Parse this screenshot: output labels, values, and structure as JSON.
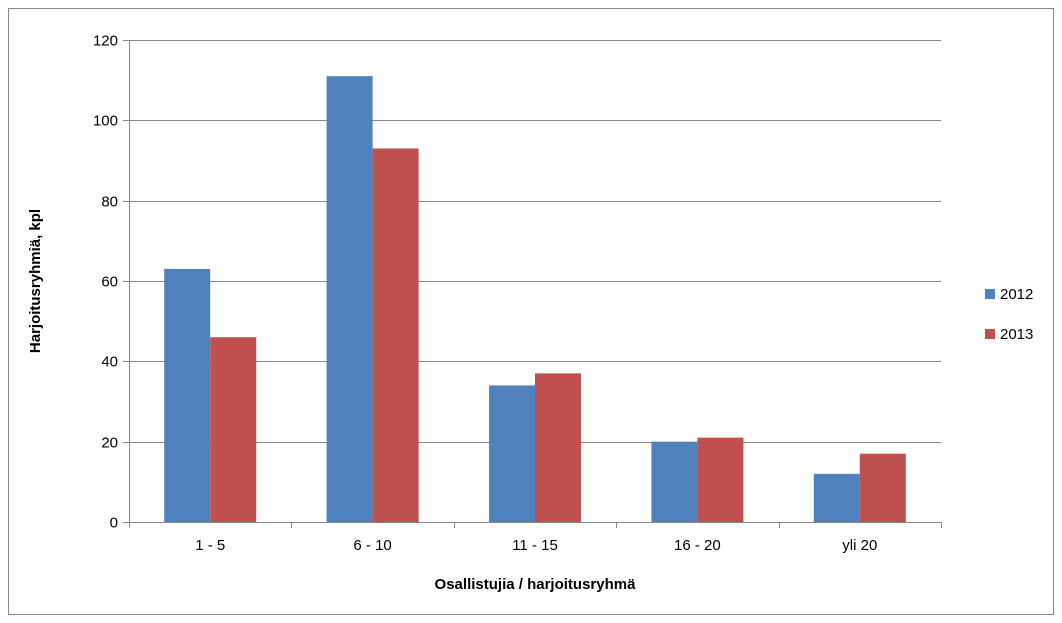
{
  "chart_data": {
    "type": "bar",
    "categories": [
      "1 - 5",
      "6 - 10",
      "11 - 15",
      "16 - 20",
      "yli 20"
    ],
    "series": [
      {
        "name": "2012",
        "color": "#4F81BD",
        "values": [
          63,
          111,
          34,
          20,
          12
        ]
      },
      {
        "name": "2013",
        "color": "#C0504D",
        "values": [
          46,
          93,
          37,
          21,
          17
        ]
      }
    ],
    "title": "",
    "xlabel": "Osallistujia / harjoitusryhmä",
    "ylabel": "Harjoitusryhmiä, kpl",
    "ylim": [
      0,
      120
    ],
    "yticks": [
      "0",
      "20",
      "40",
      "60",
      "80",
      "100",
      "120"
    ],
    "grid": true,
    "legend_position": "right"
  }
}
